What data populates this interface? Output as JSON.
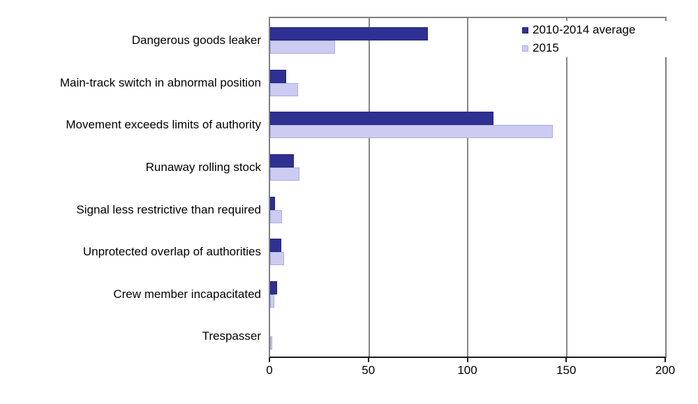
{
  "chart_data": {
    "type": "bar",
    "orientation": "horizontal",
    "title": "",
    "xlabel": "",
    "ylabel": "",
    "categories": [
      "Dangerous goods leaker",
      "Main-track switch in abnormal position",
      "Movement exceeds limits of authority",
      "Runaway rolling stock",
      "Signal less restrictive than required",
      "Unprotected overlap of authorities",
      "Crew member incapacitated",
      "Trespasser"
    ],
    "series": [
      {
        "name": "2010-2014 average",
        "fill_color": "#2E3192",
        "border_color": "#1F2178",
        "values": [
          80,
          8,
          113,
          12,
          2.5,
          5.5,
          3.5,
          0
        ]
      },
      {
        "name": "2015",
        "fill_color": "#CCCCF2",
        "border_color": "#ABACDE",
        "values": [
          33,
          14,
          143,
          15,
          6,
          7,
          2,
          1
        ]
      }
    ],
    "xlim": [
      0,
      200
    ],
    "x_ticks": [
      0,
      50,
      100,
      150,
      200
    ],
    "grid": "vertical-major-gridlines",
    "legend_position": "top-right",
    "plot_border_color": "#808080",
    "axis_line_color": "#1a1a1a",
    "gridline_color": "#878787",
    "background_color": "#ffffff"
  }
}
